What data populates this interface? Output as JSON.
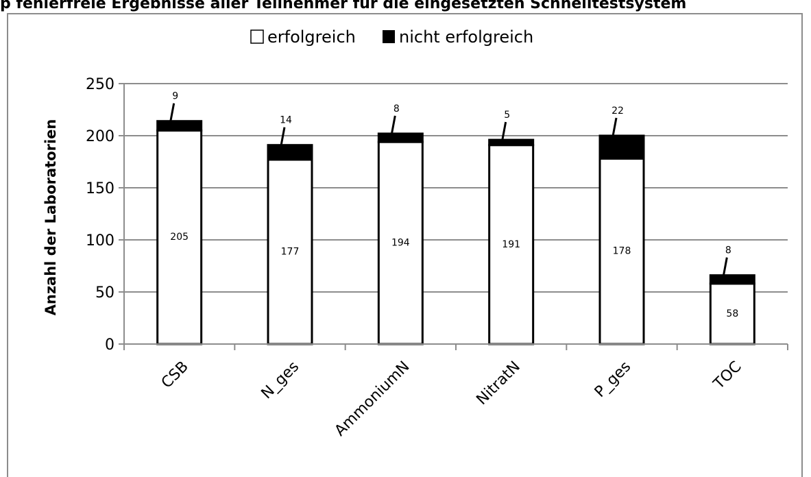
{
  "chart_data": {
    "type": "bar",
    "stacked": true,
    "title": "p fehlerfreie Ergebnisse aller Teilnehmer fur die eingesetzten Schnelltestsystem",
    "xlabel": "",
    "ylabel": "Anzahl der Laboratorien",
    "ylim": [
      0,
      250
    ],
    "yticks": [
      0,
      50,
      100,
      150,
      200,
      250
    ],
    "grid": true,
    "legend_position": "top",
    "categories": [
      "CSB",
      "N_ges",
      "AmmoniumN",
      "NitratN",
      "P_ges",
      "TOC"
    ],
    "series": [
      {
        "name": "erfolgreich",
        "color": "#ffffff",
        "values": [
          205,
          177,
          194,
          191,
          178,
          58
        ]
      },
      {
        "name": "nicht erfolgreich",
        "color": "#000000",
        "values": [
          9,
          14,
          8,
          5,
          22,
          8
        ]
      }
    ]
  }
}
